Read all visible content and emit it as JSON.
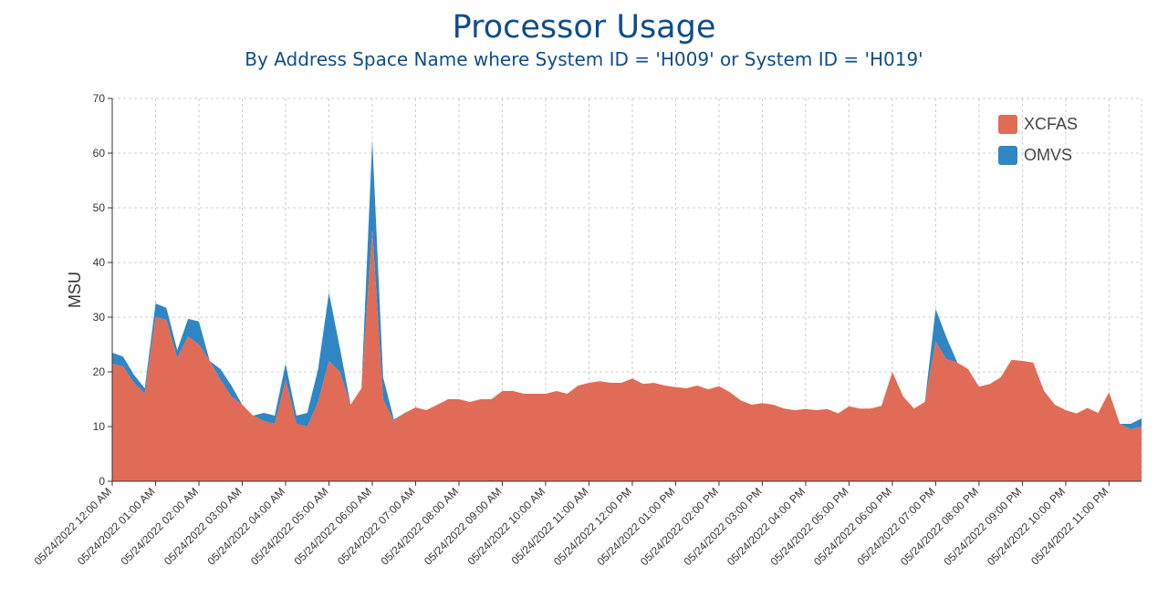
{
  "chart_data": {
    "type": "area",
    "stacked": true,
    "title": "Processor Usage",
    "subtitle": "By Address Space Name where System ID = 'H009' or System ID = 'H019'",
    "ylabel": "MSU",
    "xlabel": "",
    "ylim": [
      0,
      70
    ],
    "yticks": [
      0,
      10,
      20,
      30,
      40,
      50,
      60,
      70
    ],
    "grid": true,
    "legend_position": "top-right",
    "x_tick_labels": [
      "05/24/2022 12:00 AM",
      "05/24/2022 01:00 AM",
      "05/24/2022 02:00 AM",
      "05/24/2022 03:00 AM",
      "05/24/2022 04:00 AM",
      "05/24/2022 05:00 AM",
      "05/24/2022 06:00 AM",
      "05/24/2022 07:00 AM",
      "05/24/2022 08:00 AM",
      "05/24/2022 09:00 AM",
      "05/24/2022 10:00 AM",
      "05/24/2022 11:00 AM",
      "05/24/2022 12:00 PM",
      "05/24/2022 01:00 PM",
      "05/24/2022 02:00 PM",
      "05/24/2022 03:00 PM",
      "05/24/2022 04:00 PM",
      "05/24/2022 05:00 PM",
      "05/24/2022 06:00 PM",
      "05/24/2022 07:00 PM",
      "05/24/2022 08:00 PM",
      "05/24/2022 09:00 PM",
      "05/24/2022 10:00 PM",
      "05/24/2022 11:00 PM"
    ],
    "x_hours": [
      0,
      0.25,
      0.5,
      0.75,
      1,
      1.25,
      1.5,
      1.75,
      2,
      2.25,
      2.5,
      2.75,
      3,
      3.25,
      3.5,
      3.75,
      4,
      4.25,
      4.5,
      4.75,
      5,
      5.25,
      5.5,
      5.75,
      6,
      6.25,
      6.5,
      6.75,
      7,
      7.25,
      7.5,
      7.75,
      8,
      8.25,
      8.5,
      8.75,
      9,
      9.25,
      9.5,
      9.75,
      10,
      10.25,
      10.5,
      10.75,
      11,
      11.25,
      11.5,
      11.75,
      12,
      12.25,
      12.5,
      12.75,
      13,
      13.25,
      13.5,
      13.75,
      14,
      14.25,
      14.5,
      14.75,
      15,
      15.25,
      15.5,
      15.75,
      16,
      16.25,
      16.5,
      16.75,
      17,
      17.25,
      17.5,
      17.75,
      18,
      18.25,
      18.5,
      18.75,
      19,
      19.25,
      19.5,
      19.75,
      20,
      20.25,
      20.5,
      20.75,
      21,
      21.25,
      21.5,
      21.75,
      22,
      22.25,
      22.5,
      22.75,
      23,
      23.25,
      23.5,
      23.75
    ],
    "series": [
      {
        "name": "XCFAS",
        "color": "#e06b56",
        "values": [
          21.5,
          21,
          18,
          16,
          30,
          29.5,
          22.5,
          26.5,
          25,
          22,
          18.5,
          15.5,
          14,
          12,
          11,
          10.5,
          18.5,
          10.5,
          10,
          14.5,
          22,
          20,
          14,
          17,
          46,
          15,
          11,
          12.5,
          13.5,
          13,
          14,
          15,
          15,
          14.5,
          15,
          15,
          16.5,
          16.5,
          16,
          16,
          16,
          16.5,
          16,
          17.5,
          18,
          18.3,
          18,
          18,
          18.8,
          17.8,
          18,
          17.5,
          17.2,
          17,
          17.5,
          16.8,
          17.4,
          16.3,
          14.8,
          14,
          14.3,
          14,
          13.3,
          13,
          13.2,
          13,
          13.2,
          12.4,
          13.7,
          13.3,
          13.3,
          13.8,
          20,
          15.5,
          13.3,
          14.5,
          25.5,
          22.3,
          21.7,
          20.5,
          17.3,
          17.8,
          19,
          22.2,
          22,
          21.7,
          16.5,
          14,
          13,
          12.4,
          13.4,
          12.5,
          16.3,
          10.5,
          9.5,
          10
        ]
      },
      {
        "name": "OMVS",
        "color": "#2f86c4",
        "values": [
          2,
          1.8,
          1.5,
          1,
          2.5,
          2.2,
          1.5,
          3.2,
          4.2,
          0,
          2,
          2,
          0,
          0,
          1.5,
          1.5,
          3,
          1.5,
          2.5,
          6,
          12.5,
          4.5,
          0,
          0,
          16.5,
          4,
          0.3,
          0,
          0,
          0,
          0,
          0,
          0,
          0,
          0,
          0,
          0,
          0,
          0,
          0,
          0,
          0,
          0,
          0,
          0,
          0,
          0,
          0,
          0,
          0,
          0,
          0,
          0,
          0,
          0,
          0,
          0,
          0,
          0,
          0,
          0,
          0,
          0,
          0,
          0,
          0,
          0,
          0,
          0,
          0,
          0,
          0,
          0,
          0,
          0,
          0,
          6,
          4,
          0,
          0,
          0,
          0,
          0,
          0,
          0,
          0,
          0,
          0,
          0,
          0,
          0,
          0,
          0,
          0,
          1,
          1.5
        ]
      }
    ]
  }
}
